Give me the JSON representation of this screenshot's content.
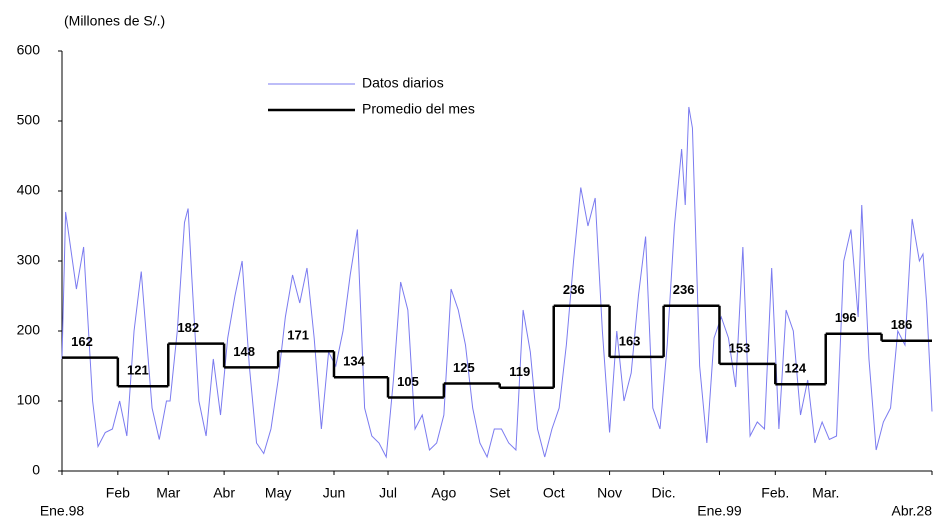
{
  "chart_data": {
    "type": "line",
    "y_axis_label": "(Millones de S/.)",
    "xlim": [
      0,
      483
    ],
    "ylim": [
      0,
      600
    ],
    "yticks": [
      0,
      100,
      200,
      300,
      400,
      500,
      600
    ],
    "xticks": [
      {
        "value": 0,
        "label": "Ene.98"
      },
      {
        "value": 31,
        "label": "Feb"
      },
      {
        "value": 59,
        "label": "Mar"
      },
      {
        "value": 90,
        "label": "Abr"
      },
      {
        "value": 120,
        "label": "May"
      },
      {
        "value": 151,
        "label": "Jun"
      },
      {
        "value": 181,
        "label": "Jul"
      },
      {
        "value": 212,
        "label": "Ago"
      },
      {
        "value": 243,
        "label": "Set"
      },
      {
        "value": 273,
        "label": "Oct"
      },
      {
        "value": 304,
        "label": "Nov"
      },
      {
        "value": 334,
        "label": "Dic."
      },
      {
        "value": 365,
        "label": "Ene.99"
      },
      {
        "value": 396,
        "label": "Feb."
      },
      {
        "value": 424,
        "label": "Mar."
      },
      {
        "value": 483,
        "label": "Abr.28"
      }
    ],
    "series": [
      {
        "name": "Datos diarios",
        "color": "#7b7bf0",
        "x": [
          0,
          2,
          8,
          12,
          17,
          20,
          24,
          28,
          32,
          36,
          40,
          44,
          50,
          54,
          58,
          60,
          64,
          68,
          70,
          72,
          76,
          80,
          84,
          88,
          92,
          96,
          100,
          104,
          108,
          112,
          116,
          120,
          124,
          128,
          132,
          136,
          140,
          144,
          148,
          152,
          156,
          160,
          164,
          168,
          172,
          176,
          180,
          184,
          188,
          192,
          196,
          200,
          204,
          208,
          212,
          216,
          220,
          224,
          228,
          232,
          236,
          240,
          244,
          248,
          252,
          256,
          260,
          264,
          268,
          272,
          276,
          280,
          284,
          288,
          292,
          296,
          300,
          304,
          308,
          312,
          316,
          320,
          324,
          328,
          332,
          336,
          340,
          344,
          346,
          348,
          350,
          354,
          358,
          362,
          366,
          370,
          374,
          378,
          382,
          386,
          390,
          394,
          398,
          402,
          406,
          410,
          414,
          418,
          422,
          426,
          430,
          434,
          438,
          442,
          444,
          448,
          452,
          456,
          460,
          464,
          468,
          472,
          476,
          478,
          480,
          483
        ],
        "values": [
          160,
          370,
          260,
          320,
          100,
          35,
          55,
          60,
          100,
          50,
          200,
          285,
          90,
          45,
          100,
          100,
          200,
          355,
          375,
          280,
          100,
          50,
          160,
          80,
          190,
          250,
          300,
          150,
          40,
          25,
          60,
          130,
          220,
          280,
          240,
          290,
          190,
          60,
          170,
          150,
          200,
          280,
          345,
          90,
          50,
          40,
          20,
          130,
          270,
          230,
          60,
          80,
          30,
          40,
          80,
          260,
          230,
          180,
          90,
          40,
          20,
          60,
          60,
          40,
          30,
          230,
          170,
          60,
          20,
          60,
          90,
          180,
          300,
          405,
          350,
          390,
          200,
          55,
          200,
          100,
          140,
          250,
          335,
          90,
          60,
          180,
          350,
          460,
          380,
          520,
          490,
          150,
          40,
          190,
          220,
          190,
          120,
          320,
          50,
          70,
          60,
          290,
          60,
          230,
          200,
          80,
          130,
          40,
          70,
          45,
          50,
          300,
          345,
          220,
          380,
          160,
          30,
          70,
          90,
          200,
          180,
          360,
          300,
          310,
          240,
          85
        ]
      },
      {
        "name": "Promedio del mes",
        "color": "#000000",
        "step": true,
        "x": [
          0,
          31,
          59,
          90,
          120,
          151,
          181,
          212,
          243,
          273,
          304,
          334,
          365,
          396,
          424,
          455
        ],
        "values": [
          162,
          121,
          182,
          148,
          171,
          134,
          105,
          125,
          119,
          236,
          163,
          236,
          153,
          124,
          196,
          186
        ]
      }
    ]
  }
}
